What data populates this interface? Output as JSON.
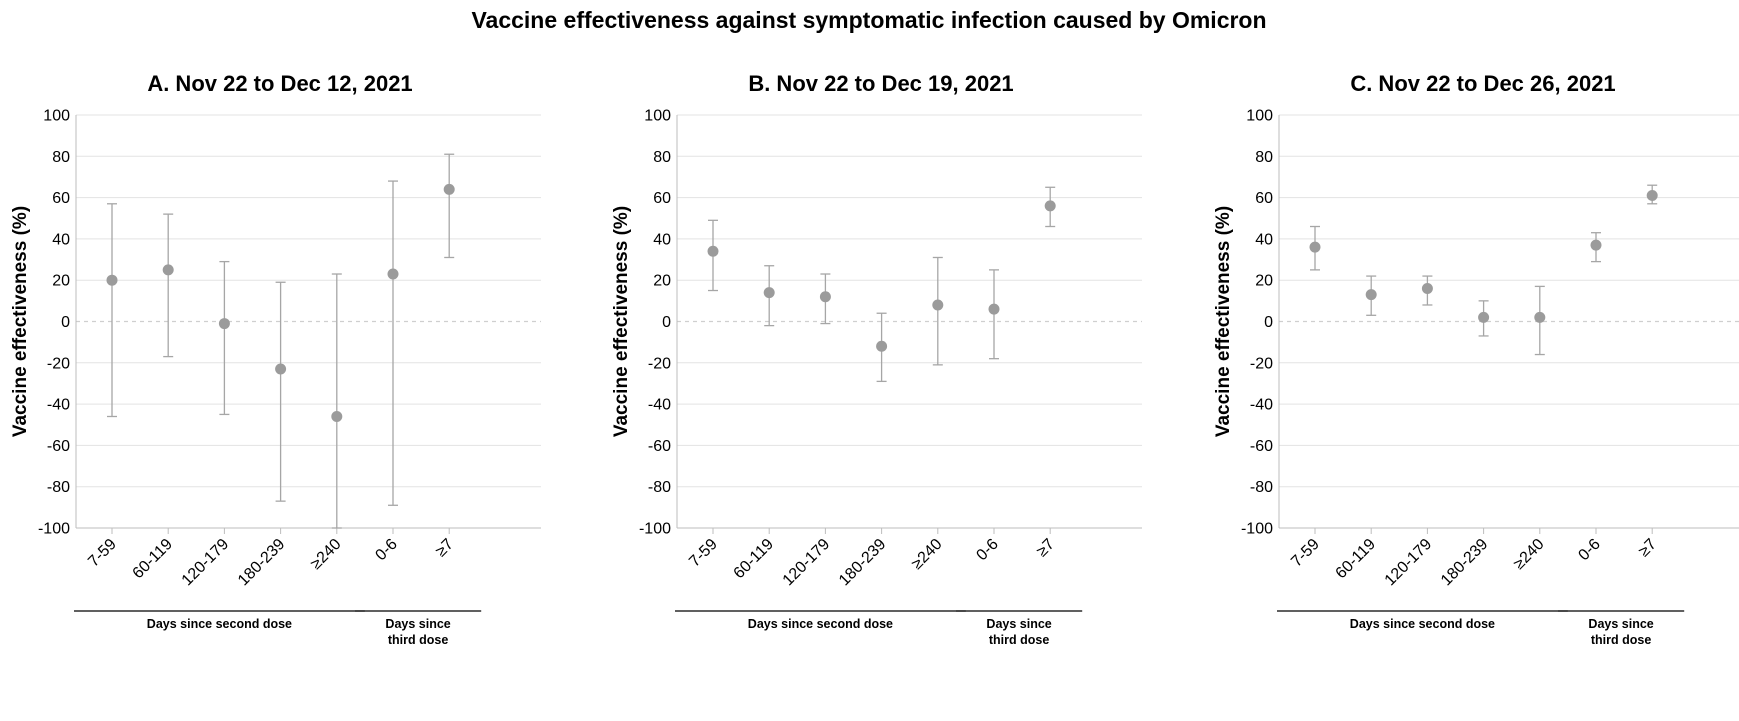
{
  "title": "Vaccine effectiveness against symptomatic infection caused by Omicron",
  "colors": {
    "marker": "#9b9b9b",
    "errorbar": "#a6a6a6",
    "grid": "#e3e3e3",
    "zero_line": "#cfcfcf",
    "text": "#000000"
  },
  "chart_data": [
    {
      "type": "scatter",
      "title": "A. Nov 22 to Dec 12, 2021",
      "ylabel": "Vaccine effectiveness (%)",
      "ylim": [
        -100,
        100
      ],
      "yticks": [
        "100",
        "80",
        "60",
        "40",
        "20",
        "0",
        "-20",
        "-40",
        "-60",
        "-80",
        "-100"
      ],
      "grid": true,
      "categories": [
        "7-59",
        "60-119",
        "120-179",
        "180-239",
        "≥240",
        "0-6",
        "≥7"
      ],
      "values": [
        20,
        25,
        -1,
        -23,
        -46,
        23,
        64
      ],
      "lower": [
        -46,
        -17,
        -45,
        -87,
        -100,
        -89,
        31
      ],
      "upper": [
        57,
        52,
        29,
        19,
        23,
        68,
        81
      ],
      "groups": [
        {
          "label": "Days since second dose",
          "categories": [
            "7-59",
            "60-119",
            "120-179",
            "180-239",
            "≥240"
          ]
        },
        {
          "label": "Days since third dose",
          "categories": [
            "0-6",
            "≥7"
          ]
        }
      ]
    },
    {
      "type": "scatter",
      "title": "B. Nov 22 to Dec 19, 2021",
      "ylabel": "Vaccine effectiveness (%)",
      "ylim": [
        -100,
        100
      ],
      "yticks": [
        "100",
        "80",
        "60",
        "40",
        "20",
        "0",
        "-20",
        "-40",
        "-60",
        "-80",
        "-100"
      ],
      "grid": true,
      "categories": [
        "7-59",
        "60-119",
        "120-179",
        "180-239",
        "≥240",
        "0-6",
        "≥7"
      ],
      "values": [
        34,
        14,
        12,
        -12,
        8,
        6,
        56
      ],
      "lower": [
        15,
        -2,
        -1,
        -29,
        -21,
        -18,
        46
      ],
      "upper": [
        49,
        27,
        23,
        4,
        31,
        25,
        65
      ],
      "groups": [
        {
          "label": "Days since second dose",
          "categories": [
            "7-59",
            "60-119",
            "120-179",
            "180-239",
            "≥240"
          ]
        },
        {
          "label": "Days since third dose",
          "categories": [
            "0-6",
            "≥7"
          ]
        }
      ]
    },
    {
      "type": "scatter",
      "title": "C. Nov 22 to Dec 26, 2021",
      "ylabel": "Vaccine effectiveness (%)",
      "ylim": [
        -100,
        100
      ],
      "yticks": [
        "100",
        "80",
        "60",
        "40",
        "20",
        "0",
        "-20",
        "-40",
        "-60",
        "-80",
        "-100"
      ],
      "grid": true,
      "categories": [
        "7-59",
        "60-119",
        "120-179",
        "180-239",
        "≥240",
        "0-6",
        "≥7"
      ],
      "values": [
        36,
        13,
        16,
        2,
        2,
        37,
        61
      ],
      "lower": [
        25,
        3,
        8,
        -7,
        -16,
        29,
        57
      ],
      "upper": [
        46,
        22,
        22,
        10,
        17,
        43,
        66
      ],
      "groups": [
        {
          "label": "Days since second dose",
          "categories": [
            "7-59",
            "60-119",
            "120-179",
            "180-239",
            "≥240"
          ]
        },
        {
          "label": "Days since third dose",
          "categories": [
            "0-6",
            "≥7"
          ]
        }
      ]
    }
  ]
}
